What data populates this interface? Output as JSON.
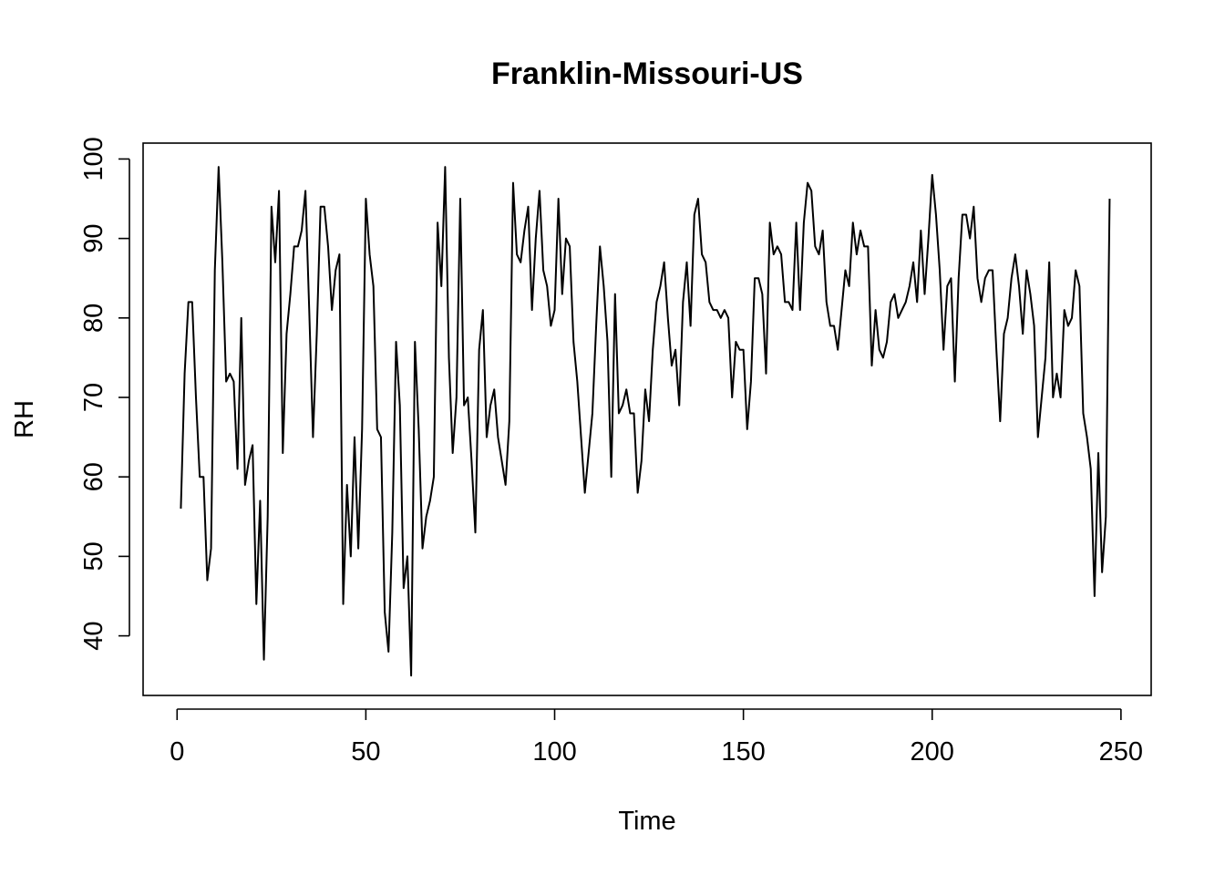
{
  "chart_data": {
    "type": "line",
    "title": "Franklin-Missouri-US",
    "xlabel": "Time",
    "ylabel": "RH",
    "xlim": [
      -9,
      258
    ],
    "ylim": [
      32.5,
      102
    ],
    "x_ticks": [
      0,
      50,
      100,
      150,
      200,
      250
    ],
    "x_tick_labels": [
      "0",
      "50",
      "100",
      "150",
      "200",
      "250"
    ],
    "y_ticks": [
      40,
      50,
      60,
      70,
      80,
      90,
      100
    ],
    "y_tick_labels": [
      "40",
      "50",
      "60",
      "70",
      "80",
      "90",
      "100"
    ],
    "grid": false,
    "legend": "none",
    "colors": {
      "line": "#000000",
      "background": "#ffffff"
    },
    "x_start": 1,
    "series": [
      {
        "values": [
          56,
          73,
          82,
          82,
          70,
          60,
          60,
          47,
          51,
          86,
          99,
          87,
          72,
          73,
          72,
          61,
          80,
          59,
          62,
          64,
          44,
          57,
          37,
          55,
          94,
          87,
          96,
          63,
          78,
          83,
          89,
          89,
          91,
          96,
          81,
          65,
          78,
          94,
          94,
          89,
          81,
          86,
          88,
          44,
          59,
          50,
          65,
          51,
          66,
          95,
          88,
          84,
          66,
          65,
          43,
          38,
          53,
          77,
          69,
          46,
          50,
          35,
          77,
          66,
          51,
          55,
          57,
          60,
          92,
          84,
          99,
          75,
          63,
          70,
          95,
          69,
          70,
          62,
          53,
          76,
          81,
          65,
          69,
          71,
          65,
          62,
          59,
          67,
          97,
          88,
          87,
          91,
          94,
          81,
          90,
          96,
          86,
          84,
          79,
          81,
          95,
          83,
          90,
          89,
          77,
          72,
          65,
          58,
          63,
          68,
          79,
          89,
          84,
          77,
          60,
          83,
          68,
          69,
          71,
          68,
          68,
          58,
          62,
          71,
          67,
          76,
          82,
          84,
          87,
          80,
          74,
          76,
          69,
          82,
          87,
          79,
          93,
          95,
          88,
          87,
          82,
          81,
          81,
          80,
          81,
          80,
          70,
          77,
          76,
          76,
          66,
          72,
          85,
          85,
          83,
          73,
          92,
          88,
          89,
          88,
          82,
          82,
          81,
          92,
          81,
          92,
          97,
          96,
          89,
          88,
          91,
          82,
          79,
          79,
          76,
          81,
          86,
          84,
          92,
          88,
          91,
          89,
          89,
          74,
          81,
          76,
          75,
          77,
          82,
          83,
          80,
          81,
          82,
          84,
          87,
          82,
          91,
          83,
          90,
          98,
          93,
          86,
          76,
          84,
          85,
          72,
          85,
          93,
          93,
          90,
          94,
          85,
          82,
          85,
          86,
          86,
          76,
          67,
          78,
          80,
          85,
          88,
          84,
          78,
          86,
          83,
          79,
          65,
          70,
          75,
          87,
          70,
          73,
          70,
          81,
          79,
          80,
          86,
          84,
          68,
          65,
          61,
          45,
          63,
          48,
          55,
          95
        ]
      }
    ]
  }
}
